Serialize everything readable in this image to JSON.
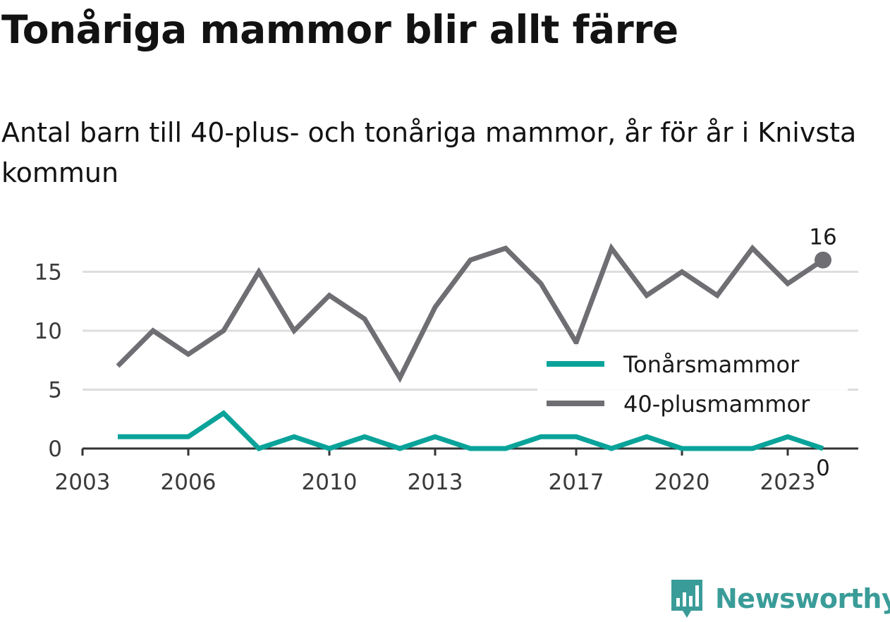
{
  "title": "Tonåriga mammor blir allt färre",
  "subtitle": "Antal barn till 40-plus- och tonåriga mammor, år för år i Knivsta kommun",
  "brand": {
    "name": "Newsworthy",
    "icon": "newsworthy-logo-icon"
  },
  "colors": {
    "teen": "#0aa39a",
    "forty": "#6f6e73",
    "grid": "#dddddd",
    "axis": "#333333"
  },
  "chart_data": {
    "type": "line",
    "x": [
      2004,
      2005,
      2006,
      2007,
      2008,
      2009,
      2010,
      2011,
      2012,
      2013,
      2014,
      2015,
      2016,
      2017,
      2018,
      2019,
      2020,
      2021,
      2022,
      2023,
      2024
    ],
    "series": [
      {
        "name": "Tonårsmammor",
        "color": "#0aa39a",
        "values": [
          1,
          1,
          1,
          3,
          0,
          1,
          0,
          1,
          0,
          1,
          0,
          0,
          1,
          1,
          0,
          1,
          0,
          0,
          0,
          1,
          0
        ],
        "end_label": "0"
      },
      {
        "name": "40-plusmammor",
        "color": "#6f6e73",
        "values": [
          7,
          10,
          8,
          10,
          15,
          10,
          13,
          11,
          6,
          12,
          16,
          17,
          14,
          9,
          17,
          13,
          15,
          13,
          17,
          14,
          16
        ],
        "end_label": "16"
      }
    ],
    "xticks": [
      2003,
      2006,
      2010,
      2013,
      2017,
      2020,
      2023
    ],
    "xtick_labels": [
      "2003",
      "2006",
      "2010",
      "2013",
      "2017",
      "2020",
      "2023"
    ],
    "yticks": [
      0,
      5,
      10,
      15
    ],
    "ytick_labels": [
      "0",
      "5",
      "10",
      "15"
    ],
    "xlim": [
      2003,
      2025
    ],
    "ylim": [
      0,
      17
    ],
    "grid": "horizontal",
    "legend_position": "right"
  }
}
